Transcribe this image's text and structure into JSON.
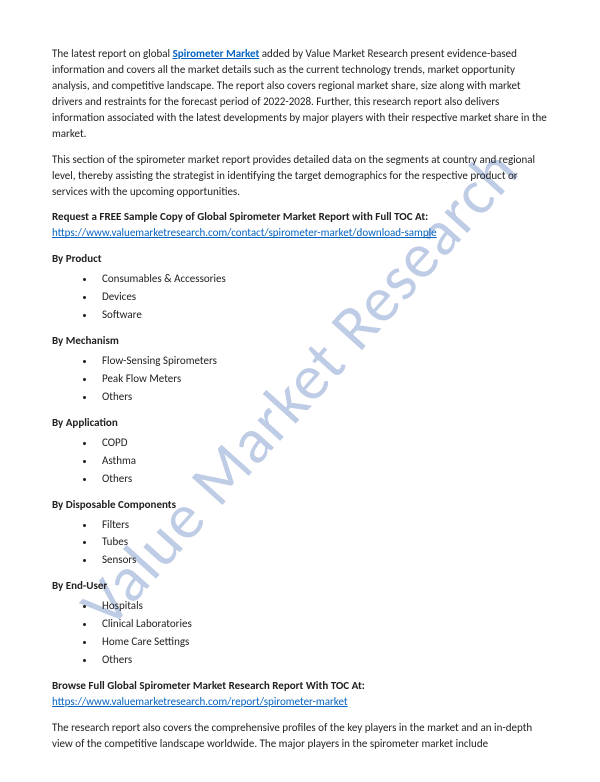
{
  "watermark": "Value Market Research",
  "intro": {
    "prefix": "The latest report on global ",
    "topic_link_text": "Spirometer Market",
    "topic_link_href": "#",
    "suffix": " added by Value Market Research present evidence-based information and covers all the market details such as the current technology trends, market opportunity analysis, and competitive landscape. The report also covers regional market share, size along with market drivers and restraints for the forecast period of 2022-2028. Further, this research report also delivers information associated with the latest developments by major players with their respective market share in the market."
  },
  "para2": "This section of the spirometer market report provides detailed data on the segments at country and regional level, thereby assisting the strategist in identifying the target demographics for the respective product or services with the upcoming opportunities.",
  "sample": {
    "heading": "Request a FREE Sample Copy of Global Spirometer Market Report with Full TOC At:",
    "link_text": "https://www.valuemarketresearch.com/contact/spirometer-market/download-sample",
    "link_href": "#"
  },
  "segments": [
    {
      "title": "By Product",
      "items": [
        "Consumables & Accessories",
        "Devices",
        "Software"
      ]
    },
    {
      "title": "By Mechanism",
      "items": [
        "Flow-Sensing Spirometers",
        "Peak Flow Meters",
        "Others"
      ]
    },
    {
      "title": "By Application",
      "items": [
        "COPD",
        "Asthma",
        "Others"
      ]
    },
    {
      "title": "By Disposable Components",
      "items": [
        "Filters",
        "Tubes",
        "Sensors"
      ]
    },
    {
      "title": "By End-User",
      "items": [
        "Hospitals",
        "Clinical Laboratories",
        "Home Care Settings",
        "Others"
      ]
    }
  ],
  "browse": {
    "heading": "Browse Full Global Spirometer Market Research Report With TOC At:",
    "link_text": "https://www.valuemarketresearch.com/report/spirometer-market",
    "link_href": "#"
  },
  "closing": "The research report also covers the comprehensive profiles of the key players in the market and an in-depth view of the competitive landscape worldwide. The major players in the spirometer market include"
}
